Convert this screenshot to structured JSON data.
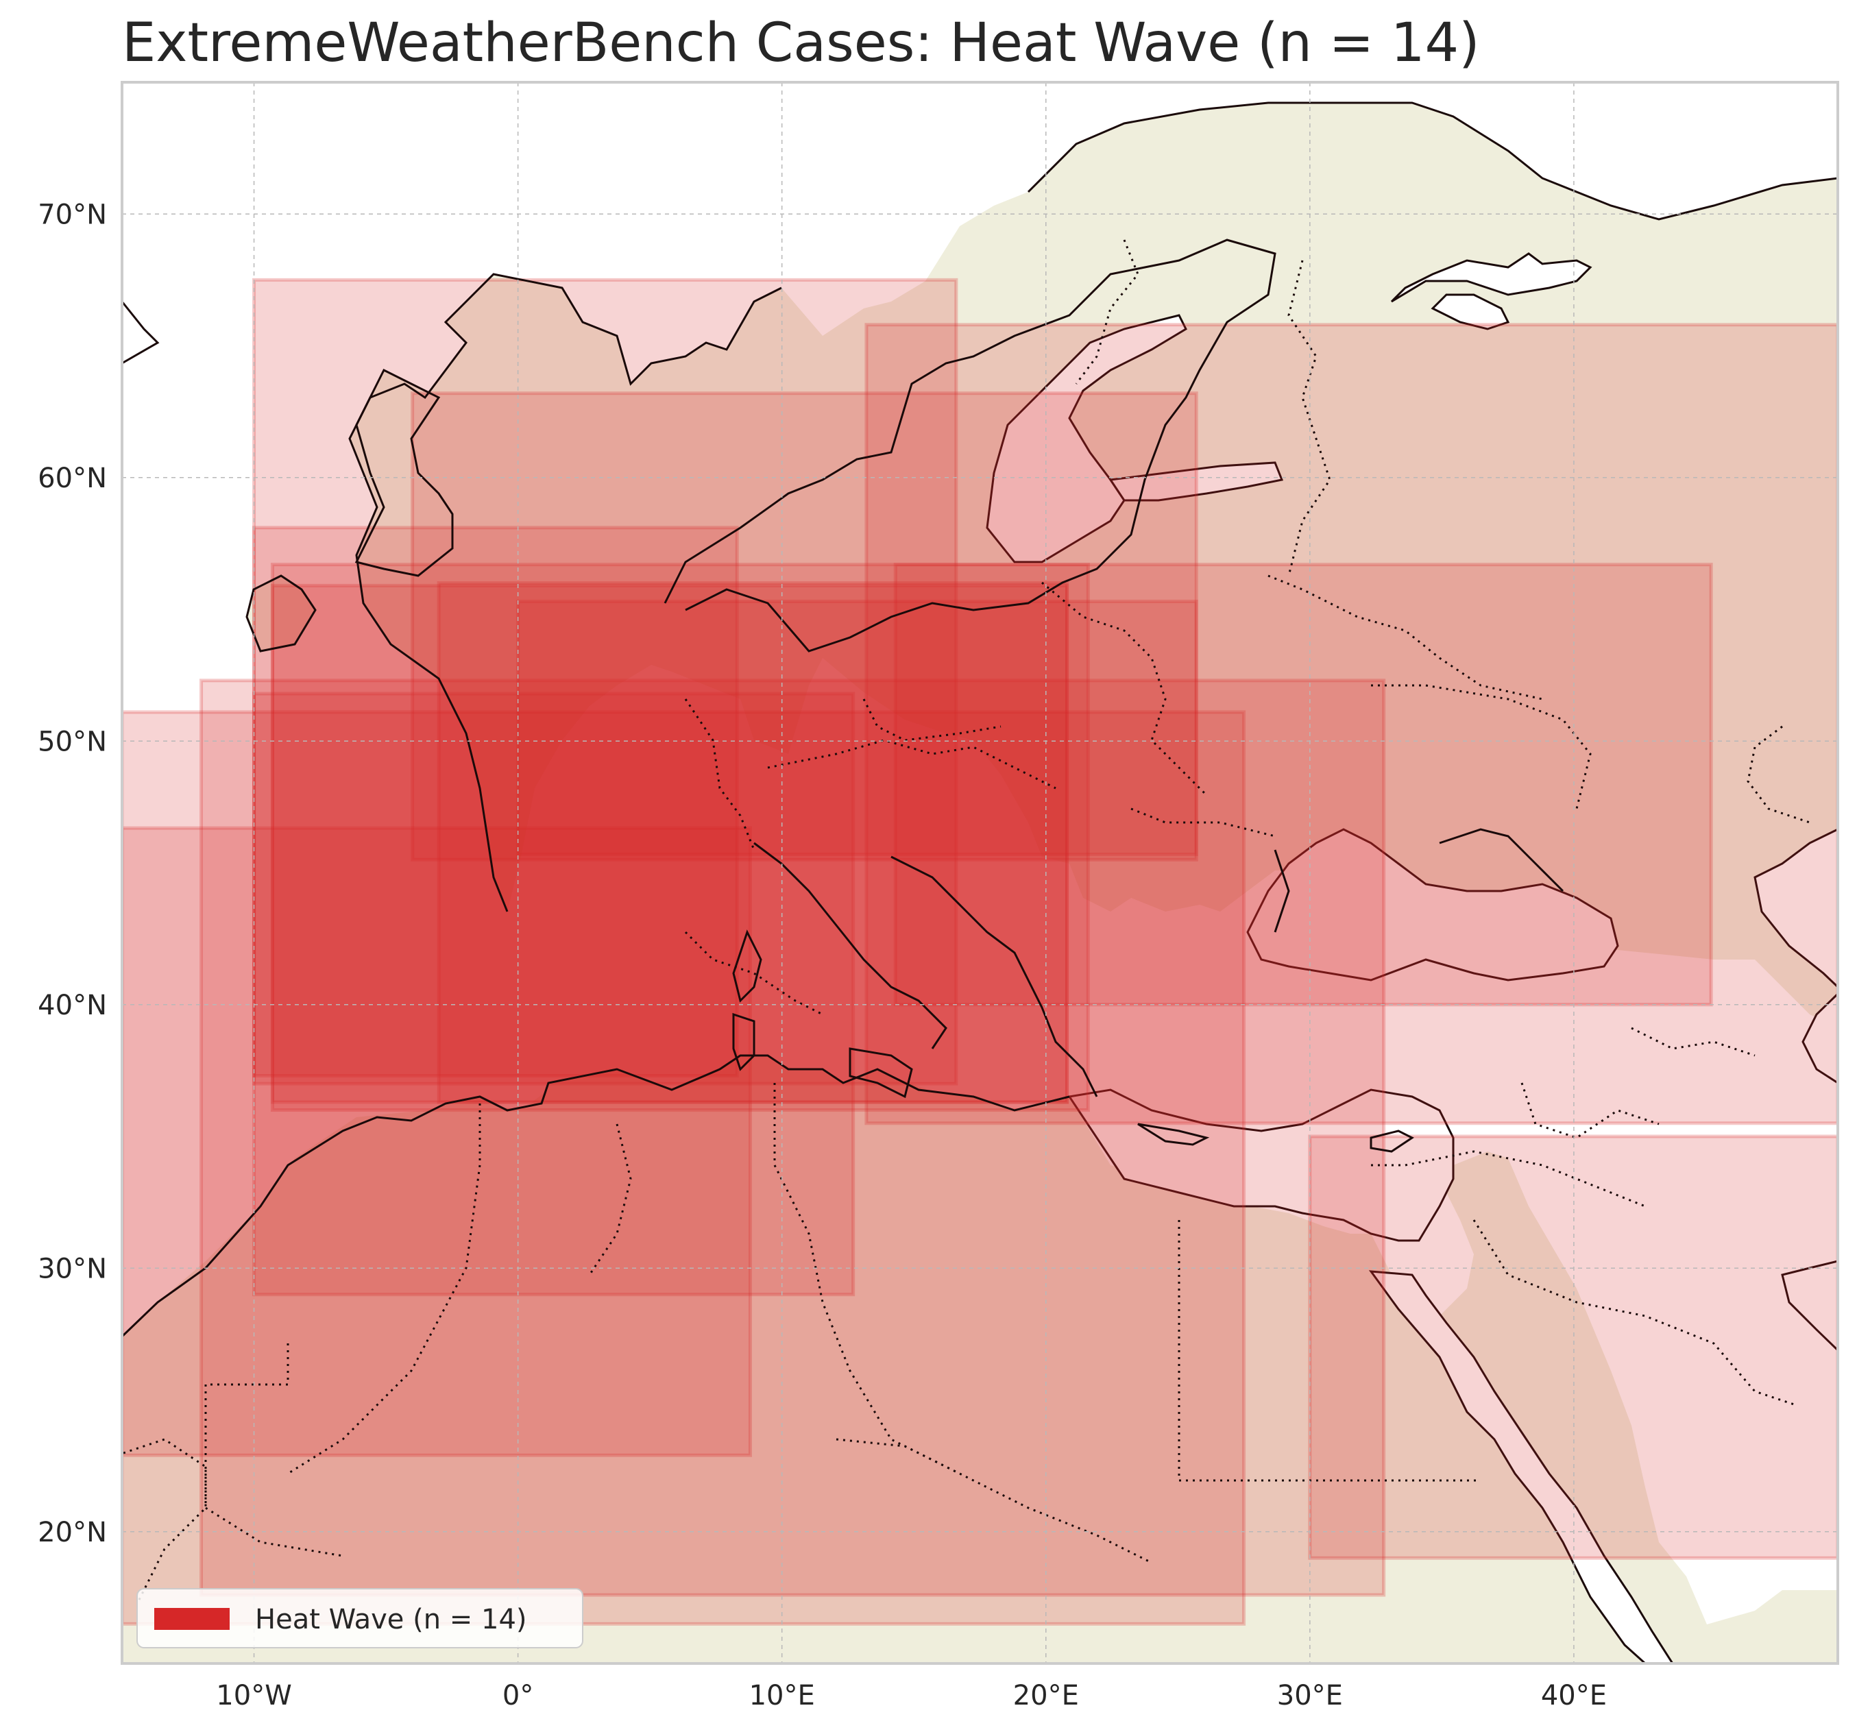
{
  "title": "ExtremeWeatherBench Cases: Heat Wave (n = 14)",
  "map": {
    "lon_range": [
      -15,
      50
    ],
    "lat_range": [
      15,
      75
    ],
    "grid": true,
    "land_color": "#efeedc",
    "coast_color": "#1a0a0a",
    "x_ticks": [
      {
        "lon": -10,
        "label": "10°W"
      },
      {
        "lon": 0,
        "label": "0°"
      },
      {
        "lon": 10,
        "label": "10°E"
      },
      {
        "lon": 20,
        "label": "20°E"
      },
      {
        "lon": 30,
        "label": "30°E"
      },
      {
        "lon": 40,
        "label": "40°E"
      }
    ],
    "y_ticks": [
      {
        "lat": 20,
        "label": "20°N"
      },
      {
        "lat": 30,
        "label": "30°N"
      },
      {
        "lat": 40,
        "label": "40°N"
      },
      {
        "lat": 50,
        "label": "50°N"
      },
      {
        "lat": 60,
        "label": "60°N"
      },
      {
        "lat": 70,
        "label": "70°N"
      }
    ]
  },
  "regions_color": "#d62728",
  "regions": [
    {
      "lon": [
        -10,
        16.6
      ],
      "lat": [
        37,
        67.5
      ]
    },
    {
      "lon": [
        -4,
        25.7
      ],
      "lat": [
        45.5,
        63.2
      ]
    },
    {
      "lon": [
        13.2,
        50
      ],
      "lat": [
        35.5,
        65.8
      ]
    },
    {
      "lon": [
        -10,
        8.3
      ],
      "lat": [
        37.3,
        58.1
      ]
    },
    {
      "lon": [
        -9.3,
        21.6
      ],
      "lat": [
        36,
        56.7
      ]
    },
    {
      "lon": [
        -9.3,
        20.8
      ],
      "lat": [
        36.3,
        55.9
      ]
    },
    {
      "lon": [
        14.3,
        45.2
      ],
      "lat": [
        40,
        56.7
      ]
    },
    {
      "lon": [
        0,
        25.7
      ],
      "lat": [
        45.7,
        55.3
      ]
    },
    {
      "lon": [
        -3,
        20.8
      ],
      "lat": [
        36.3,
        56
      ]
    },
    {
      "lon": [
        -12,
        32.8
      ],
      "lat": [
        17.6,
        52.3
      ]
    },
    {
      "lon": [
        -15,
        27.5
      ],
      "lat": [
        16.5,
        51.1
      ]
    },
    {
      "lon": [
        -10,
        12.7
      ],
      "lat": [
        29,
        51.8
      ]
    },
    {
      "lon": [
        -15,
        8.8
      ],
      "lat": [
        22.9,
        46.7
      ]
    },
    {
      "lon": [
        30,
        50
      ],
      "lat": [
        19,
        35
      ]
    }
  ],
  "legend": {
    "label": "Heat Wave (n = 14)",
    "position": "lower-left"
  }
}
